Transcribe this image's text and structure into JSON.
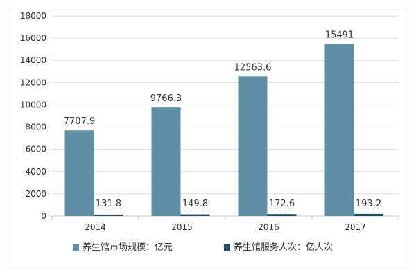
{
  "chart_data": {
    "type": "bar",
    "categories": [
      "2014",
      "2015",
      "2016",
      "2017"
    ],
    "series": [
      {
        "name": "养生馆市场规模：亿元",
        "values": [
          7707.9,
          9766.3,
          12563.6,
          15491
        ],
        "labels": [
          "7707.9",
          "9766.3",
          "12563.6",
          "15491"
        ],
        "color": "#5f8fa6"
      },
      {
        "name": "养生馆服务人次：亿人次",
        "values": [
          131.8,
          149.8,
          172.6,
          193.2
        ],
        "labels": [
          "131.8",
          "149.8",
          "172.6",
          "193.2"
        ],
        "color": "#1f4e5f"
      }
    ],
    "yticks": [
      "0",
      "2000",
      "4000",
      "6000",
      "8000",
      "10000",
      "12000",
      "14000",
      "16000",
      "18000"
    ],
    "ylim": [
      0,
      18000
    ],
    "grid": true,
    "legend_position": "bottom"
  }
}
